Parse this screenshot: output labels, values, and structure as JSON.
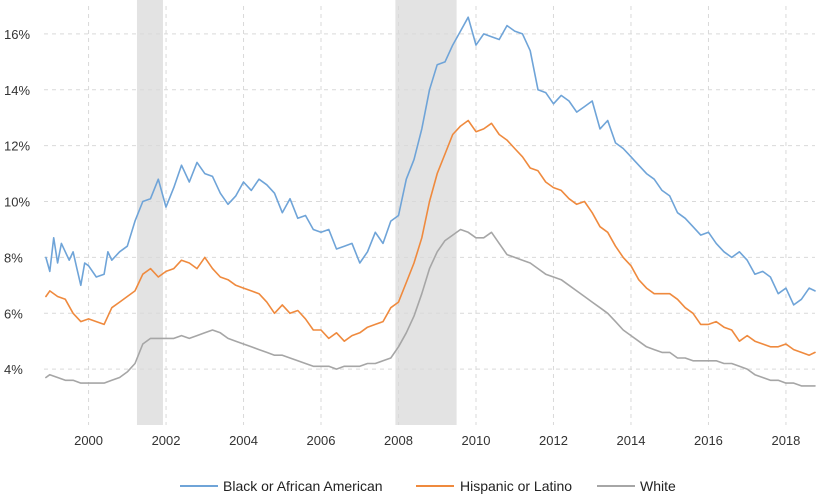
{
  "chart_data": {
    "type": "line",
    "title": "",
    "xlabel": "",
    "ylabel": "",
    "x_ticks": [
      "2000",
      "2002",
      "2004",
      "2006",
      "2008",
      "2010",
      "2012",
      "2014",
      "2016",
      "2018"
    ],
    "x_tick_values": [
      2000,
      2002,
      2004,
      2006,
      2008,
      2010,
      2012,
      2014,
      2016,
      2018
    ],
    "y_ticks": [
      "4%",
      "6%",
      "8%",
      "10%",
      "12%",
      "14%",
      "16%"
    ],
    "y_tick_values": [
      4,
      6,
      8,
      10,
      12,
      14,
      16
    ],
    "xlim": [
      1998.85,
      2018.75
    ],
    "ylim": [
      2.0,
      17.0
    ],
    "grid": true,
    "legend_position": "bottom",
    "recessions": [
      {
        "start": 2001.25,
        "end": 2001.92
      },
      {
        "start": 2007.92,
        "end": 2009.5
      }
    ],
    "series": [
      {
        "name": "Black or African American",
        "color": "#6fa4d8",
        "x": [
          1998.9,
          1999.0,
          1999.1,
          1999.2,
          1999.3,
          1999.4,
          1999.5,
          1999.6,
          1999.7,
          1999.8,
          1999.9,
          2000.0,
          2000.2,
          2000.4,
          2000.5,
          2000.6,
          2000.8,
          2001.0,
          2001.2,
          2001.4,
          2001.6,
          2001.8,
          2002.0,
          2002.2,
          2002.4,
          2002.6,
          2002.8,
          2003.0,
          2003.2,
          2003.4,
          2003.6,
          2003.8,
          2004.0,
          2004.2,
          2004.4,
          2004.6,
          2004.8,
          2005.0,
          2005.2,
          2005.4,
          2005.6,
          2005.8,
          2006.0,
          2006.2,
          2006.4,
          2006.6,
          2006.8,
          2007.0,
          2007.2,
          2007.4,
          2007.6,
          2007.8,
          2008.0,
          2008.2,
          2008.4,
          2008.6,
          2008.8,
          2009.0,
          2009.2,
          2009.4,
          2009.6,
          2009.8,
          2010.0,
          2010.2,
          2010.4,
          2010.6,
          2010.8,
          2011.0,
          2011.2,
          2011.4,
          2011.6,
          2011.8,
          2012.0,
          2012.2,
          2012.4,
          2012.6,
          2012.8,
          2013.0,
          2013.2,
          2013.4,
          2013.6,
          2013.8,
          2014.0,
          2014.2,
          2014.4,
          2014.6,
          2014.8,
          2015.0,
          2015.2,
          2015.4,
          2015.6,
          2015.8,
          2016.0,
          2016.2,
          2016.4,
          2016.6,
          2016.8,
          2017.0,
          2017.2,
          2017.4,
          2017.6,
          2017.8,
          2018.0,
          2018.2,
          2018.4,
          2018.6,
          2018.75
        ],
        "y": [
          8.0,
          7.5,
          8.7,
          7.8,
          8.5,
          8.2,
          7.9,
          8.2,
          7.6,
          7.0,
          7.8,
          7.7,
          7.3,
          7.4,
          8.2,
          7.9,
          8.2,
          8.4,
          9.3,
          10.0,
          10.1,
          10.8,
          9.8,
          10.5,
          11.3,
          10.7,
          11.4,
          11.0,
          10.9,
          10.3,
          9.9,
          10.2,
          10.7,
          10.4,
          10.8,
          10.6,
          10.3,
          9.6,
          10.1,
          9.4,
          9.5,
          9.0,
          8.9,
          9.0,
          8.3,
          8.4,
          8.5,
          7.8,
          8.2,
          8.9,
          8.5,
          9.3,
          9.5,
          10.8,
          11.5,
          12.6,
          14.0,
          14.9,
          15.0,
          15.6,
          16.1,
          16.6,
          15.6,
          16.0,
          15.9,
          15.8,
          16.3,
          16.1,
          16.0,
          15.4,
          14.0,
          13.9,
          13.5,
          13.8,
          13.6,
          13.2,
          13.4,
          13.6,
          12.6,
          12.9,
          12.1,
          11.9,
          11.6,
          11.3,
          11.0,
          10.8,
          10.4,
          10.2,
          9.6,
          9.4,
          9.1,
          8.8,
          8.9,
          8.5,
          8.2,
          8.0,
          8.2,
          7.9,
          7.4,
          7.5,
          7.3,
          6.7,
          6.9,
          6.3,
          6.5,
          6.9,
          6.8
        ]
      },
      {
        "name": "Hispanic or Latino",
        "color": "#ef8a3e",
        "x": [
          1998.9,
          1999.0,
          1999.2,
          1999.4,
          1999.6,
          1999.8,
          2000.0,
          2000.2,
          2000.4,
          2000.6,
          2000.8,
          2001.0,
          2001.2,
          2001.4,
          2001.6,
          2001.8,
          2002.0,
          2002.2,
          2002.4,
          2002.6,
          2002.8,
          2003.0,
          2003.2,
          2003.4,
          2003.6,
          2003.8,
          2004.0,
          2004.2,
          2004.4,
          2004.6,
          2004.8,
          2005.0,
          2005.2,
          2005.4,
          2005.6,
          2005.8,
          2006.0,
          2006.2,
          2006.4,
          2006.6,
          2006.8,
          2007.0,
          2007.2,
          2007.4,
          2007.6,
          2007.8,
          2008.0,
          2008.2,
          2008.4,
          2008.6,
          2008.8,
          2009.0,
          2009.2,
          2009.4,
          2009.6,
          2009.8,
          2010.0,
          2010.2,
          2010.4,
          2010.6,
          2010.8,
          2011.0,
          2011.2,
          2011.4,
          2011.6,
          2011.8,
          2012.0,
          2012.2,
          2012.4,
          2012.6,
          2012.8,
          2013.0,
          2013.2,
          2013.4,
          2013.6,
          2013.8,
          2014.0,
          2014.2,
          2014.4,
          2014.6,
          2014.8,
          2015.0,
          2015.2,
          2015.4,
          2015.6,
          2015.8,
          2016.0,
          2016.2,
          2016.4,
          2016.6,
          2016.8,
          2017.0,
          2017.2,
          2017.4,
          2017.6,
          2017.8,
          2018.0,
          2018.2,
          2018.4,
          2018.6,
          2018.75
        ],
        "y": [
          6.6,
          6.8,
          6.6,
          6.5,
          6.0,
          5.7,
          5.8,
          5.7,
          5.6,
          6.2,
          6.4,
          6.6,
          6.8,
          7.4,
          7.6,
          7.3,
          7.5,
          7.6,
          7.9,
          7.8,
          7.6,
          8.0,
          7.6,
          7.3,
          7.2,
          7.0,
          6.9,
          6.8,
          6.7,
          6.4,
          6.0,
          6.3,
          6.0,
          6.1,
          5.8,
          5.4,
          5.4,
          5.1,
          5.3,
          5.0,
          5.2,
          5.3,
          5.5,
          5.6,
          5.7,
          6.2,
          6.4,
          7.1,
          7.8,
          8.7,
          10.0,
          11.0,
          11.7,
          12.4,
          12.7,
          12.9,
          12.5,
          12.6,
          12.8,
          12.4,
          12.2,
          11.9,
          11.6,
          11.2,
          11.1,
          10.7,
          10.5,
          10.4,
          10.1,
          9.9,
          10.0,
          9.6,
          9.1,
          8.9,
          8.4,
          8.0,
          7.7,
          7.2,
          6.9,
          6.7,
          6.7,
          6.7,
          6.5,
          6.2,
          6.0,
          5.6,
          5.6,
          5.7,
          5.5,
          5.4,
          5.0,
          5.2,
          5.0,
          4.9,
          4.8,
          4.8,
          4.9,
          4.7,
          4.6,
          4.5,
          4.6
        ]
      },
      {
        "name": "White",
        "color": "#a6a6a6",
        "x": [
          1998.9,
          1999.0,
          1999.2,
          1999.4,
          1999.6,
          1999.8,
          2000.0,
          2000.2,
          2000.4,
          2000.6,
          2000.8,
          2001.0,
          2001.2,
          2001.4,
          2001.6,
          2001.8,
          2002.0,
          2002.2,
          2002.4,
          2002.6,
          2002.8,
          2003.0,
          2003.2,
          2003.4,
          2003.6,
          2003.8,
          2004.0,
          2004.2,
          2004.4,
          2004.6,
          2004.8,
          2005.0,
          2005.2,
          2005.4,
          2005.6,
          2005.8,
          2006.0,
          2006.2,
          2006.4,
          2006.6,
          2006.8,
          2007.0,
          2007.2,
          2007.4,
          2007.6,
          2007.8,
          2008.0,
          2008.2,
          2008.4,
          2008.6,
          2008.8,
          2009.0,
          2009.2,
          2009.4,
          2009.6,
          2009.8,
          2010.0,
          2010.2,
          2010.4,
          2010.6,
          2010.8,
          2011.0,
          2011.2,
          2011.4,
          2011.6,
          2011.8,
          2012.0,
          2012.2,
          2012.4,
          2012.6,
          2012.8,
          2013.0,
          2013.2,
          2013.4,
          2013.6,
          2013.8,
          2014.0,
          2014.2,
          2014.4,
          2014.6,
          2014.8,
          2015.0,
          2015.2,
          2015.4,
          2015.6,
          2015.8,
          2016.0,
          2016.2,
          2016.4,
          2016.6,
          2016.8,
          2017.0,
          2017.2,
          2017.4,
          2017.6,
          2017.8,
          2018.0,
          2018.2,
          2018.4,
          2018.6,
          2018.75
        ],
        "y": [
          3.7,
          3.8,
          3.7,
          3.6,
          3.6,
          3.5,
          3.5,
          3.5,
          3.5,
          3.6,
          3.7,
          3.9,
          4.2,
          4.9,
          5.1,
          5.1,
          5.1,
          5.1,
          5.2,
          5.1,
          5.2,
          5.3,
          5.4,
          5.3,
          5.1,
          5.0,
          4.9,
          4.8,
          4.7,
          4.6,
          4.5,
          4.5,
          4.4,
          4.3,
          4.2,
          4.1,
          4.1,
          4.1,
          4.0,
          4.1,
          4.1,
          4.1,
          4.2,
          4.2,
          4.3,
          4.4,
          4.8,
          5.3,
          5.9,
          6.7,
          7.6,
          8.2,
          8.6,
          8.8,
          9.0,
          8.9,
          8.7,
          8.7,
          8.9,
          8.5,
          8.1,
          8.0,
          7.9,
          7.8,
          7.6,
          7.4,
          7.3,
          7.2,
          7.0,
          6.8,
          6.6,
          6.4,
          6.2,
          6.0,
          5.7,
          5.4,
          5.2,
          5.0,
          4.8,
          4.7,
          4.6,
          4.6,
          4.4,
          4.4,
          4.3,
          4.3,
          4.3,
          4.3,
          4.2,
          4.2,
          4.1,
          4.0,
          3.8,
          3.7,
          3.6,
          3.6,
          3.5,
          3.5,
          3.4,
          3.4,
          3.4
        ]
      }
    ]
  }
}
